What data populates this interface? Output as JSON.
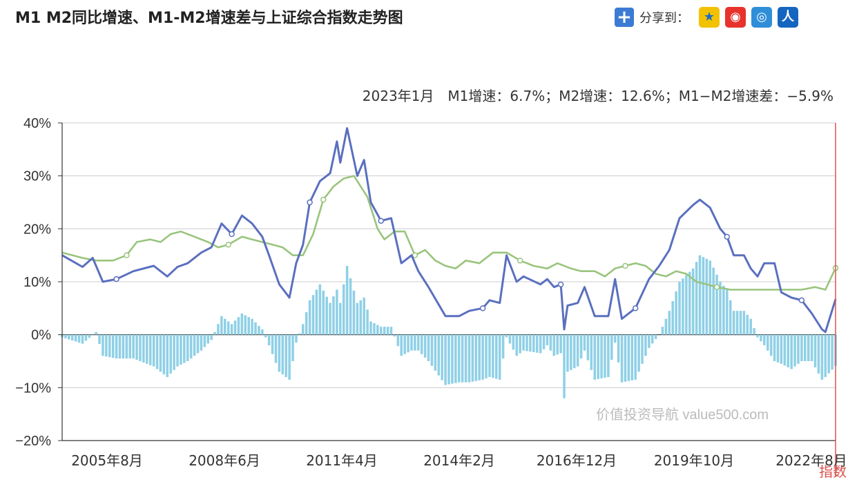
{
  "header": {
    "title": "M1 M2同比增速、M1-M2增速差与上证综合指数走势图",
    "share_label": "分享到：",
    "share_icons": [
      "add-share-icon",
      "qzone-icon",
      "weibo-icon",
      "tencent-weibo-icon",
      "renren-icon"
    ]
  },
  "chart_data": {
    "type": "line",
    "annotation": "2023年1月　M1增速：6.7%；M2增速：12.6%；M1−M2增速差：−5.9%",
    "watermark": "价值投资导航 value500.com",
    "right_axis_label_partial": "指数",
    "yticks": [
      "40%",
      "30%",
      "20%",
      "10%",
      "0%",
      "−10%",
      "−20%"
    ],
    "ylim": [
      -20,
      40
    ],
    "x_ticks": [
      "2005年8月",
      "2008年6月",
      "2011年4月",
      "2014年2月",
      "2016年12月",
      "2019年10月",
      "2022年8月"
    ],
    "x_range": [
      "2004-01",
      "2023-01"
    ],
    "colors": {
      "m1": "#5a6fbf",
      "m2": "#99c47c",
      "diff": "#8fd0e6",
      "grid": "#cccccc",
      "right_axis": "#d9534f"
    },
    "series": [
      {
        "key": "m1",
        "points": [
          [
            "2004-01",
            15.0
          ],
          [
            "2004-07",
            12.8
          ],
          [
            "2004-10",
            14.5
          ],
          [
            "2005-01",
            10.0
          ],
          [
            "2005-05",
            10.5
          ],
          [
            "2005-10",
            12.0
          ],
          [
            "2006-04",
            13.0
          ],
          [
            "2006-08",
            11.0
          ],
          [
            "2006-11",
            12.8
          ],
          [
            "2007-02",
            13.5
          ],
          [
            "2007-06",
            15.5
          ],
          [
            "2007-09",
            16.5
          ],
          [
            "2007-12",
            21.0
          ],
          [
            "2008-03",
            19.0
          ],
          [
            "2008-06",
            22.5
          ],
          [
            "2008-09",
            21.0
          ],
          [
            "2008-12",
            18.5
          ],
          [
            "2009-02",
            15.0
          ],
          [
            "2009-05",
            9.5
          ],
          [
            "2009-08",
            7.0
          ],
          [
            "2009-10",
            13.5
          ],
          [
            "2009-12",
            17.0
          ],
          [
            "2010-02",
            25.0
          ],
          [
            "2010-05",
            29.0
          ],
          [
            "2010-08",
            30.5
          ],
          [
            "2010-10",
            36.5
          ],
          [
            "2010-11",
            32.5
          ],
          [
            "2011-01",
            39.0
          ],
          [
            "2011-04",
            30.0
          ],
          [
            "2011-06",
            33.0
          ],
          [
            "2011-08",
            25.0
          ],
          [
            "2011-11",
            21.5
          ],
          [
            "2012-02",
            22.0
          ],
          [
            "2012-05",
            13.5
          ],
          [
            "2012-08",
            15.0
          ],
          [
            "2012-10",
            12.0
          ],
          [
            "2013-01",
            9.0
          ],
          [
            "2013-06",
            3.5
          ],
          [
            "2013-10",
            3.5
          ],
          [
            "2014-01",
            4.5
          ],
          [
            "2014-05",
            5.0
          ],
          [
            "2014-07",
            6.5
          ],
          [
            "2014-10",
            6.0
          ],
          [
            "2014-12",
            15.0
          ],
          [
            "2015-03",
            10.0
          ],
          [
            "2015-05",
            11.0
          ],
          [
            "2015-10",
            9.5
          ],
          [
            "2015-12",
            10.5
          ],
          [
            "2016-02",
            9.0
          ],
          [
            "2016-04",
            9.5
          ],
          [
            "2016-05",
            1.0
          ],
          [
            "2016-06",
            5.5
          ],
          [
            "2016-09",
            6.0
          ],
          [
            "2016-11",
            9.0
          ],
          [
            "2017-02",
            3.5
          ],
          [
            "2017-06",
            3.5
          ],
          [
            "2017-08",
            10.5
          ],
          [
            "2017-10",
            3.0
          ],
          [
            "2018-02",
            5.0
          ],
          [
            "2018-06",
            10.5
          ],
          [
            "2018-09",
            13.0
          ],
          [
            "2018-12",
            16.0
          ],
          [
            "2019-03",
            22.0
          ],
          [
            "2019-07",
            24.5
          ],
          [
            "2019-09",
            25.5
          ],
          [
            "2019-12",
            24.0
          ],
          [
            "2020-03",
            20.0
          ],
          [
            "2020-05",
            18.5
          ],
          [
            "2020-07",
            15.0
          ],
          [
            "2020-10",
            15.0
          ],
          [
            "2020-12",
            12.5
          ],
          [
            "2021-02",
            11.0
          ],
          [
            "2021-04",
            13.5
          ],
          [
            "2021-07",
            13.5
          ],
          [
            "2021-09",
            8.0
          ],
          [
            "2021-12",
            7.0
          ],
          [
            "2022-03",
            6.5
          ],
          [
            "2022-06",
            4.0
          ],
          [
            "2022-09",
            1.0
          ],
          [
            "2022-10",
            0.5
          ],
          [
            "2023-01",
            6.7
          ]
        ]
      },
      {
        "key": "m2",
        "points": [
          [
            "2004-01",
            15.5
          ],
          [
            "2004-07",
            14.5
          ],
          [
            "2004-11",
            14.0
          ],
          [
            "2005-04",
            14.0
          ],
          [
            "2005-08",
            15.0
          ],
          [
            "2005-11",
            17.5
          ],
          [
            "2006-03",
            18.0
          ],
          [
            "2006-06",
            17.5
          ],
          [
            "2006-09",
            19.0
          ],
          [
            "2006-12",
            19.5
          ],
          [
            "2007-04",
            18.5
          ],
          [
            "2007-08",
            17.5
          ],
          [
            "2007-11",
            16.5
          ],
          [
            "2008-02",
            17.0
          ],
          [
            "2008-06",
            18.5
          ],
          [
            "2008-09",
            18.0
          ],
          [
            "2008-12",
            17.5
          ],
          [
            "2009-03",
            17.0
          ],
          [
            "2009-06",
            16.5
          ],
          [
            "2009-09",
            15.0
          ],
          [
            "2009-12",
            15.0
          ],
          [
            "2010-03",
            19.0
          ],
          [
            "2010-06",
            25.5
          ],
          [
            "2010-09",
            28.0
          ],
          [
            "2010-12",
            29.5
          ],
          [
            "2011-03",
            30.0
          ],
          [
            "2011-07",
            26.0
          ],
          [
            "2011-10",
            20.0
          ],
          [
            "2011-12",
            18.0
          ],
          [
            "2012-03",
            19.5
          ],
          [
            "2012-06",
            19.5
          ],
          [
            "2012-09",
            15.0
          ],
          [
            "2012-12",
            16.0
          ],
          [
            "2013-03",
            14.0
          ],
          [
            "2013-06",
            13.0
          ],
          [
            "2013-09",
            12.5
          ],
          [
            "2013-12",
            14.0
          ],
          [
            "2014-04",
            13.5
          ],
          [
            "2014-08",
            15.5
          ],
          [
            "2014-12",
            15.5
          ],
          [
            "2015-04",
            14.0
          ],
          [
            "2015-08",
            13.0
          ],
          [
            "2015-12",
            12.5
          ],
          [
            "2016-03",
            13.5
          ],
          [
            "2016-07",
            12.5
          ],
          [
            "2016-10",
            12.0
          ],
          [
            "2017-02",
            12.0
          ],
          [
            "2017-05",
            11.0
          ],
          [
            "2017-08",
            12.5
          ],
          [
            "2017-11",
            13.0
          ],
          [
            "2018-02",
            13.5
          ],
          [
            "2018-05",
            13.0
          ],
          [
            "2018-08",
            11.5
          ],
          [
            "2018-11",
            11.0
          ],
          [
            "2019-02",
            12.0
          ],
          [
            "2019-05",
            11.5
          ],
          [
            "2019-08",
            10.0
          ],
          [
            "2019-11",
            9.5
          ],
          [
            "2020-02",
            9.0
          ],
          [
            "2020-06",
            8.5
          ],
          [
            "2020-10",
            8.5
          ],
          [
            "2021-02",
            8.5
          ],
          [
            "2021-06",
            8.5
          ],
          [
            "2021-10",
            8.5
          ],
          [
            "2022-03",
            8.5
          ],
          [
            "2022-07",
            9.0
          ],
          [
            "2022-10",
            8.5
          ],
          [
            "2023-01",
            12.6
          ]
        ]
      },
      {
        "key": "diff",
        "type": "bar",
        "points": [
          [
            "2004-01",
            -0.5
          ],
          [
            "2004-07",
            -1.7
          ],
          [
            "2004-11",
            0.5
          ],
          [
            "2005-01",
            -4.0
          ],
          [
            "2005-05",
            -4.5
          ],
          [
            "2005-10",
            -4.5
          ],
          [
            "2006-04",
            -6.0
          ],
          [
            "2006-08",
            -8.0
          ],
          [
            "2006-11",
            -6.0
          ],
          [
            "2007-02",
            -5.0
          ],
          [
            "2007-06",
            -3.0
          ],
          [
            "2007-09",
            -1.0
          ],
          [
            "2007-12",
            3.5
          ],
          [
            "2008-03",
            2.0
          ],
          [
            "2008-06",
            4.0
          ],
          [
            "2008-09",
            3.0
          ],
          [
            "2008-12",
            1.0
          ],
          [
            "2009-02",
            -2.0
          ],
          [
            "2009-05",
            -7.0
          ],
          [
            "2009-08",
            -8.5
          ],
          [
            "2009-10",
            -1.5
          ],
          [
            "2009-12",
            2.0
          ],
          [
            "2010-02",
            6.5
          ],
          [
            "2010-05",
            9.5
          ],
          [
            "2010-08",
            6.0
          ],
          [
            "2010-10",
            8.5
          ],
          [
            "2010-11",
            6.0
          ],
          [
            "2011-01",
            13.0
          ],
          [
            "2011-04",
            6.0
          ],
          [
            "2011-06",
            7.0
          ],
          [
            "2011-08",
            2.5
          ],
          [
            "2011-11",
            1.5
          ],
          [
            "2012-02",
            1.5
          ],
          [
            "2012-05",
            -4.0
          ],
          [
            "2012-08",
            -3.0
          ],
          [
            "2012-10",
            -3.0
          ],
          [
            "2013-01",
            -5.0
          ],
          [
            "2013-06",
            -9.5
          ],
          [
            "2013-10",
            -9.0
          ],
          [
            "2014-01",
            -9.0
          ],
          [
            "2014-05",
            -8.5
          ],
          [
            "2014-07",
            -8.0
          ],
          [
            "2014-10",
            -8.5
          ],
          [
            "2014-12",
            -0.5
          ],
          [
            "2015-03",
            -4.0
          ],
          [
            "2015-05",
            -3.0
          ],
          [
            "2015-10",
            -3.5
          ],
          [
            "2015-12",
            -2.0
          ],
          [
            "2016-02",
            -4.0
          ],
          [
            "2016-04",
            -3.5
          ],
          [
            "2016-05",
            -12.0
          ],
          [
            "2016-06",
            -7.0
          ],
          [
            "2016-09",
            -6.0
          ],
          [
            "2016-11",
            -3.0
          ],
          [
            "2017-02",
            -8.5
          ],
          [
            "2017-06",
            -8.0
          ],
          [
            "2017-08",
            -1.5
          ],
          [
            "2017-10",
            -9.0
          ],
          [
            "2018-02",
            -8.5
          ],
          [
            "2018-06",
            -2.5
          ],
          [
            "2018-09",
            0.0
          ],
          [
            "2018-12",
            4.5
          ],
          [
            "2019-03",
            10.0
          ],
          [
            "2019-07",
            12.5
          ],
          [
            "2019-09",
            15.0
          ],
          [
            "2019-12",
            14.0
          ],
          [
            "2020-03",
            10.0
          ],
          [
            "2020-05",
            8.5
          ],
          [
            "2020-07",
            4.5
          ],
          [
            "2020-10",
            4.5
          ],
          [
            "2020-12",
            3.0
          ],
          [
            "2021-02",
            -0.5
          ],
          [
            "2021-04",
            -2.0
          ],
          [
            "2021-07",
            -5.0
          ],
          [
            "2021-09",
            -5.5
          ],
          [
            "2021-12",
            -6.5
          ],
          [
            "2022-03",
            -5.0
          ],
          [
            "2022-06",
            -5.0
          ],
          [
            "2022-09",
            -8.5
          ],
          [
            "2022-10",
            -8.0
          ],
          [
            "2023-01",
            -5.9
          ]
        ]
      }
    ]
  }
}
